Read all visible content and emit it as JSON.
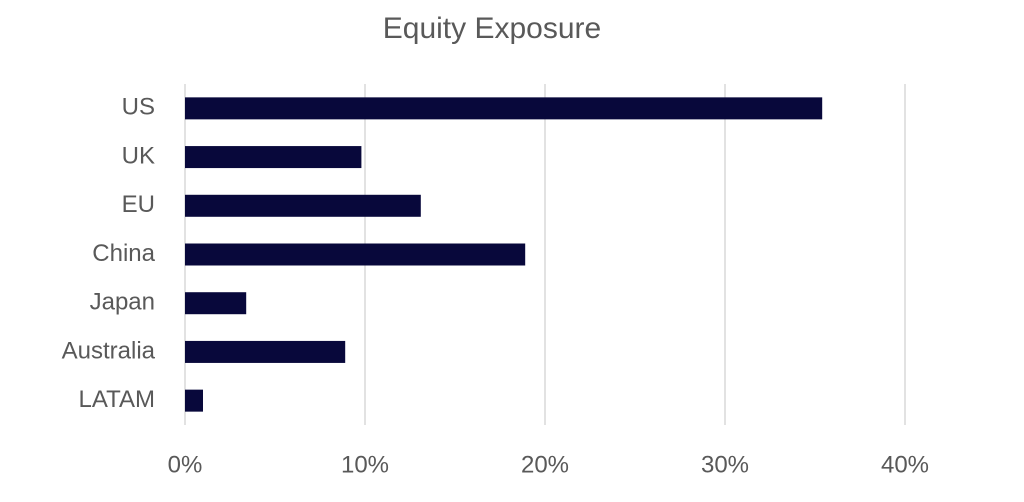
{
  "chart_data": {
    "type": "bar",
    "orientation": "horizontal",
    "title": "Equity Exposure",
    "categories": [
      "US",
      "UK",
      "EU",
      "China",
      "Japan",
      "Australia",
      "LATAM"
    ],
    "values": [
      35.4,
      9.8,
      13.1,
      18.9,
      3.4,
      8.9,
      1.0
    ],
    "color": "#08083b",
    "xlim": [
      0,
      40
    ],
    "xticks": [
      {
        "value": 0,
        "label": "0%"
      },
      {
        "value": 10,
        "label": "10%"
      },
      {
        "value": 20,
        "label": "20%"
      },
      {
        "value": 30,
        "label": "30%"
      },
      {
        "value": 40,
        "label": "40%"
      }
    ],
    "grid": true
  }
}
